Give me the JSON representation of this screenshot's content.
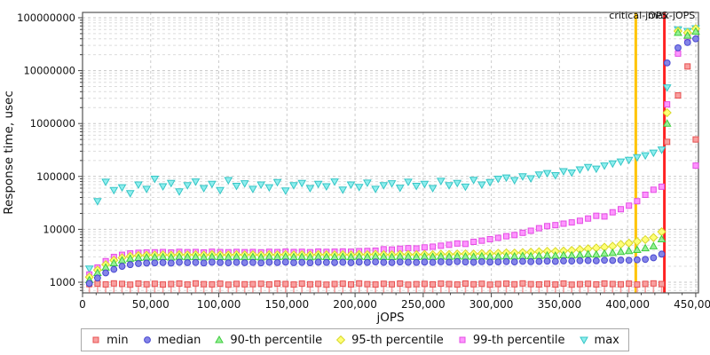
{
  "chart_data": {
    "type": "scatter",
    "title": "",
    "xlabel": "jOPS",
    "ylabel": "Response time, usec",
    "y_scale": "log",
    "grid": "dashed",
    "legend_position": "bottom",
    "xlim": [
      0,
      452000
    ],
    "ylim": [
      629,
      126000000
    ],
    "x_ticks": [
      0,
      50000,
      100000,
      150000,
      200000,
      250000,
      300000,
      350000,
      400000,
      450000
    ],
    "x_tick_labels": [
      "0",
      "50,000",
      "100,000",
      "150,000",
      "200,000",
      "250,000",
      "300,000",
      "350,000",
      "400,000",
      "450,000"
    ],
    "y_ticks": [
      1000,
      10000,
      100000,
      1000000,
      10000000,
      100000000
    ],
    "y_tick_labels": [
      "1000",
      "10000",
      "100000",
      "1000000",
      "10000000",
      "100000000"
    ],
    "annotations": {
      "critical_jops": {
        "label": "critical-jOPS",
        "x": 406000,
        "color": "#ffc400"
      },
      "max_jops": {
        "label": "max-jOPS",
        "x": 427000,
        "color": "#ff2222"
      }
    },
    "x": [
      5000,
      11000,
      17000,
      23000,
      29000,
      35000,
      41000,
      47000,
      53000,
      59000,
      65000,
      71000,
      77000,
      83000,
      89000,
      95000,
      101000,
      107000,
      113000,
      119000,
      125000,
      131000,
      137000,
      143000,
      149000,
      155000,
      161000,
      167000,
      173000,
      179000,
      185000,
      191000,
      197000,
      203000,
      209000,
      215000,
      221000,
      227000,
      233000,
      239000,
      245000,
      251000,
      257000,
      263000,
      269000,
      275000,
      281000,
      287000,
      293000,
      299000,
      305000,
      311000,
      317000,
      323000,
      329000,
      335000,
      341000,
      347000,
      353000,
      359000,
      365000,
      371000,
      377000,
      383000,
      389000,
      395000,
      401000,
      407000,
      413000,
      419000,
      425000,
      429000,
      437000,
      444000,
      450000
    ],
    "series": [
      {
        "name": "min",
        "label": "min",
        "marker": "square",
        "color": "#e85050",
        "fill": "#f8a0a0",
        "dropline": true,
        "values": [
          920,
          940,
          910,
          950,
          930,
          900,
          945,
          915,
          935,
          905,
          925,
          945,
          905,
          950,
          920,
          910,
          940,
          900,
          930,
          915,
          920,
          935,
          910,
          945,
          925,
          905,
          940,
          915,
          930,
          900,
          925,
          940,
          910,
          950,
          920,
          905,
          935,
          915,
          945,
          900,
          920,
          930,
          910,
          940,
          925,
          905,
          945,
          915,
          935,
          900,
          925,
          940,
          915,
          950,
          920,
          910,
          935,
          905,
          945,
          900,
          920,
          935,
          910,
          945,
          925,
          915,
          940,
          905,
          930,
          950,
          925,
          450000,
          3400000,
          12000000,
          500000
        ]
      },
      {
        "name": "median",
        "label": "median",
        "marker": "circle",
        "color": "#4848d0",
        "fill": "#8484e8",
        "values": [
          950,
          1200,
          1500,
          1750,
          2000,
          2150,
          2250,
          2300,
          2320,
          2350,
          2300,
          2380,
          2340,
          2360,
          2310,
          2390,
          2350,
          2330,
          2370,
          2340,
          2360,
          2320,
          2380,
          2350,
          2400,
          2340,
          2370,
          2330,
          2390,
          2360,
          2350,
          2380,
          2340,
          2400,
          2360,
          2420,
          2370,
          2350,
          2410,
          2380,
          2360,
          2400,
          2370,
          2430,
          2390,
          2450,
          2410,
          2380,
          2440,
          2400,
          2420,
          2450,
          2420,
          2480,
          2440,
          2470,
          2500,
          2470,
          2530,
          2510,
          2550,
          2570,
          2540,
          2600,
          2580,
          2620,
          2600,
          2650,
          2700,
          2900,
          3400,
          14000000,
          27000000,
          34000000,
          40000000
        ]
      },
      {
        "name": "p90",
        "label": "90-th percentile",
        "marker": "triangle-up",
        "color": "#3ecc3e",
        "fill": "#96f096",
        "values": [
          1100,
          1500,
          1900,
          2300,
          2600,
          2800,
          2900,
          2950,
          2970,
          3000,
          2950,
          3030,
          2990,
          3010,
          2960,
          3040,
          3000,
          2980,
          3020,
          2990,
          3010,
          2970,
          3030,
          3000,
          3050,
          2990,
          3020,
          2980,
          3040,
          3010,
          3000,
          3030,
          2990,
          3050,
          3010,
          3070,
          3020,
          3000,
          3060,
          3030,
          3010,
          3050,
          3020,
          3080,
          3040,
          3100,
          3060,
          3030,
          3090,
          3050,
          3070,
          3100,
          3080,
          3140,
          3110,
          3160,
          3200,
          3170,
          3250,
          3220,
          3300,
          3400,
          3350,
          3500,
          3600,
          3750,
          3900,
          4100,
          4400,
          4800,
          6500,
          1000000,
          52000000,
          46000000,
          55000000
        ]
      },
      {
        "name": "p95",
        "label": "95-th percentile",
        "marker": "diamond",
        "color": "#d8d828",
        "fill": "#ffff78",
        "values": [
          1250,
          1700,
          2150,
          2600,
          2900,
          3100,
          3200,
          3250,
          3270,
          3300,
          3250,
          3330,
          3290,
          3310,
          3260,
          3340,
          3300,
          3280,
          3320,
          3290,
          3310,
          3270,
          3330,
          3300,
          3350,
          3290,
          3320,
          3280,
          3340,
          3310,
          3300,
          3330,
          3290,
          3360,
          3320,
          3380,
          3330,
          3310,
          3370,
          3340,
          3320,
          3360,
          3330,
          3400,
          3360,
          3420,
          3450,
          3420,
          3500,
          3470,
          3550,
          3600,
          3570,
          3650,
          3700,
          3780,
          3850,
          3820,
          3900,
          4000,
          4150,
          4300,
          4450,
          4600,
          4800,
          5200,
          5500,
          5900,
          6400,
          7000,
          9000,
          1600000,
          56000000,
          52000000,
          62000000
        ]
      },
      {
        "name": "p99",
        "label": "99-th percentile",
        "marker": "square",
        "color": "#e34ce3",
        "fill": "#ff96ff",
        "values": [
          1400,
          1900,
          2500,
          3000,
          3300,
          3500,
          3600,
          3650,
          3680,
          3720,
          3650,
          3750,
          3700,
          3730,
          3660,
          3770,
          3720,
          3690,
          3740,
          3700,
          3730,
          3680,
          3760,
          3720,
          3790,
          3730,
          3760,
          3700,
          3800,
          3750,
          3780,
          3820,
          3780,
          3870,
          3900,
          3950,
          4200,
          4150,
          4300,
          4400,
          4350,
          4550,
          4700,
          4900,
          5100,
          5400,
          5300,
          5800,
          6100,
          6500,
          6900,
          7400,
          7800,
          8600,
          9400,
          10500,
          11500,
          12000,
          12800,
          13500,
          14500,
          16000,
          18000,
          17500,
          21000,
          24000,
          28000,
          34000,
          45000,
          56000,
          64000,
          2300000,
          21000000,
          42000000,
          160000
        ]
      },
      {
        "name": "max",
        "label": "max",
        "marker": "triangle-down",
        "color": "#35c6c6",
        "fill": "#8feeee",
        "values": [
          1800,
          34000,
          79000,
          55000,
          62000,
          48000,
          70000,
          58000,
          90000,
          65000,
          75000,
          52000,
          68000,
          80000,
          60000,
          72000,
          55000,
          85000,
          66000,
          74000,
          58000,
          70000,
          62000,
          78000,
          54000,
          68000,
          75000,
          60000,
          72000,
          65000,
          80000,
          56000,
          70000,
          63000,
          76000,
          58000,
          68000,
          74000,
          61000,
          79000,
          66000,
          72000,
          60000,
          82000,
          68000,
          75000,
          64000,
          86000,
          70000,
          78000,
          90000,
          95000,
          85000,
          100000,
          92000,
          108000,
          115000,
          105000,
          125000,
          118000,
          135000,
          150000,
          140000,
          160000,
          175000,
          190000,
          205000,
          230000,
          250000,
          280000,
          320000,
          4800000,
          60000000,
          56000000,
          63000000
        ]
      }
    ],
    "legend_order": [
      "min",
      "median",
      "p90",
      "p95",
      "p99",
      "max"
    ],
    "draw_order": [
      "min",
      "max",
      "p99",
      "p95",
      "p90",
      "median"
    ]
  }
}
